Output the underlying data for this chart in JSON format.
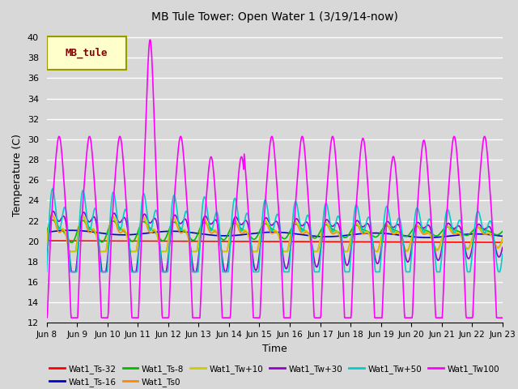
{
  "title": "MB Tule Tower: Open Water 1 (3/19/14-now)",
  "xlabel": "Time",
  "ylabel": "Temperature (C)",
  "ylim": [
    12,
    41
  ],
  "yticks": [
    12,
    14,
    16,
    18,
    20,
    22,
    24,
    26,
    28,
    30,
    32,
    34,
    36,
    38,
    40
  ],
  "xtick_labels": [
    "Jun 8",
    "Jun 9",
    "Jun 10",
    "Jun 11",
    "Jun 12",
    "Jun 13",
    "Jun 14",
    "Jun 15",
    "Jun 16",
    "Jun 17",
    "Jun 18",
    "Jun 19",
    "Jun 20",
    "Jun 21",
    "Jun 22",
    "Jun 23"
  ],
  "series": {
    "Wat1_Ts-32": {
      "color": "#ff0000",
      "lw": 1.2
    },
    "Wat1_Ts-16": {
      "color": "#0000cc",
      "lw": 1.2
    },
    "Wat1_Ts-8": {
      "color": "#00bb00",
      "lw": 1.2
    },
    "Wat1_Ts0": {
      "color": "#ff8800",
      "lw": 1.2
    },
    "Wat1_Tw+10": {
      "color": "#cccc00",
      "lw": 1.2
    },
    "Wat1_Tw+30": {
      "color": "#9900cc",
      "lw": 1.2
    },
    "Wat1_Tw+50": {
      "color": "#00cccc",
      "lw": 1.2
    },
    "Wat1_Tw100": {
      "color": "#ff00ff",
      "lw": 1.2
    }
  },
  "legend_label": "MB_tule",
  "background_color": "#d8d8d8",
  "plot_bg_color": "#d8d8d8",
  "grid_color": "#ffffff",
  "n_points": 1000
}
